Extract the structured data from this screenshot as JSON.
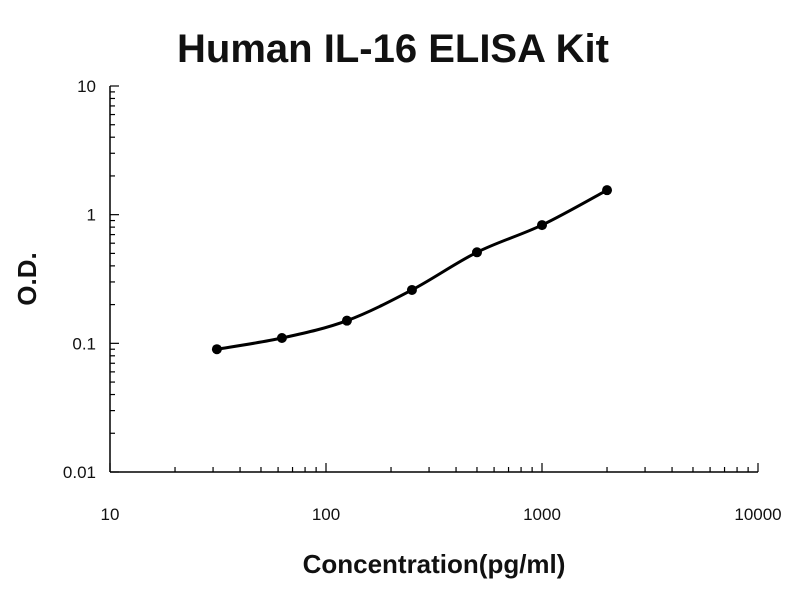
{
  "chart_data": {
    "type": "scatter",
    "title": "Human IL-16 ELISA Kit",
    "xlabel": "Concentration(pg/ml)",
    "ylabel": "O.D.",
    "x_scale": "log",
    "y_scale": "log",
    "xlim": [
      10,
      10000
    ],
    "ylim": [
      0.01,
      10
    ],
    "x_ticks": [
      10,
      100,
      1000,
      10000
    ],
    "x_tick_labels": [
      "10",
      "100",
      "1000",
      "10000"
    ],
    "y_ticks": [
      0.01,
      0.1,
      1,
      10
    ],
    "y_tick_labels": [
      "0.01",
      "0.1",
      "1",
      "10"
    ],
    "grid": false,
    "series": [
      {
        "x": [
          31.25,
          62.5,
          125,
          250,
          500,
          1000,
          2000
        ],
        "y": [
          0.09,
          0.11,
          0.15,
          0.26,
          0.51,
          0.83,
          1.55
        ],
        "fit_line": true,
        "color": "#000000"
      }
    ]
  }
}
